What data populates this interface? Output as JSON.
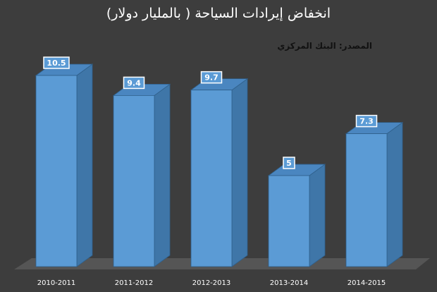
{
  "chart_data": {
    "type": "bar",
    "title": "انخفاض إيرادات السياحة ( بالمليار دولار)",
    "annotation": "المصدر: البنك المركزي",
    "categories": [
      "2010-2011",
      "2011-2012",
      "2012-2013",
      "2013-2014",
      "2014-2015"
    ],
    "values": [
      10.5,
      9.4,
      9.7,
      5,
      7.3
    ],
    "data_labels": [
      "10.5",
      "9.4",
      "9.7",
      "5",
      "7.3"
    ],
    "ylim": [
      0,
      10.5
    ],
    "style": "3d-column",
    "grid": false,
    "legend": "none",
    "colors": {
      "background": "#3d3d3d",
      "bar_front": "#5b9bd5",
      "bar_side": "#3f76a8",
      "bar_top": "#4a86c0",
      "bar_edge": "#2f5f8a",
      "floor": "#555555",
      "label_bg": "#5b9bd5",
      "label_border": "#ffffff",
      "text": "#ffffff"
    }
  }
}
